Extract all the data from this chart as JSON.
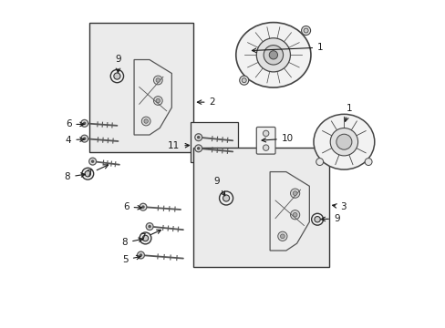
{
  "bg_color": "#ffffff",
  "line_color": "#333333",
  "light_gray": "#e8e8e8",
  "gray": "#aaaaaa",
  "dark_gray": "#666666"
}
